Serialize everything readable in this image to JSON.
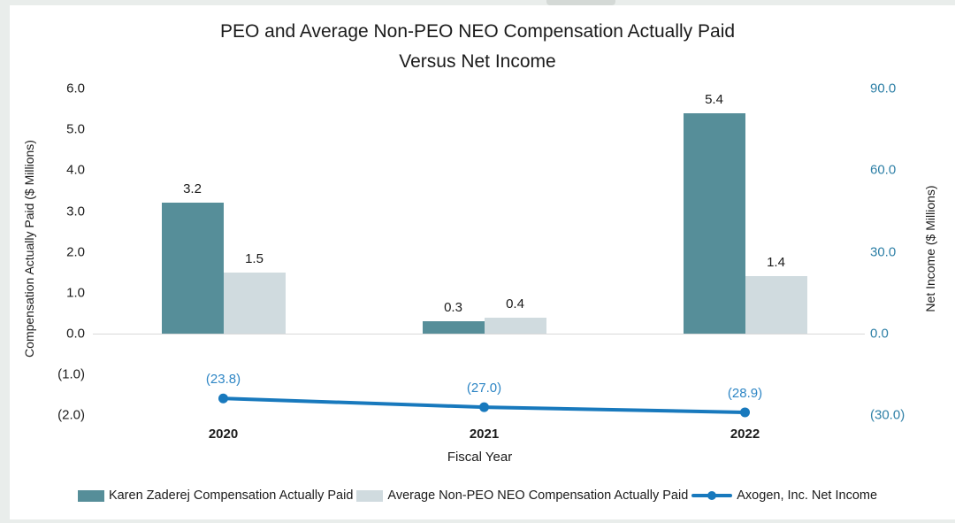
{
  "page": {
    "background_color": "#e9edeb",
    "card_color": "#ffffff",
    "tab_color": "#d4d9d6"
  },
  "chart_data": {
    "type": "bar+line combo",
    "title_line1": "PEO and Average Non-PEO NEO Compensation Actually Paid",
    "title_line2": "Versus Net Income",
    "xlabel": "Fiscal Year",
    "categories": [
      "2020",
      "2021",
      "2022"
    ],
    "left_axis": {
      "label": "Compensation Actually Paid ($ Millions)",
      "ticks": [
        "6.0",
        "5.0",
        "4.0",
        "3.0",
        "2.0",
        "1.0",
        "0.0",
        "(1.0)",
        "(2.0)"
      ],
      "range": [
        -2.0,
        6.0
      ],
      "color": "#1b1b1b"
    },
    "right_axis": {
      "label": "Net Income ($ Millions)",
      "ticks": [
        "90.0",
        "60.0",
        "30.0",
        "0.0",
        "(30.0)"
      ],
      "range": [
        -30.0,
        90.0
      ],
      "color": "#2d7fa6"
    },
    "series": [
      {
        "name": "Karen Zaderej Compensation Actually Paid",
        "type": "bar",
        "color": "#568e99",
        "values": [
          3.2,
          0.3,
          5.4
        ],
        "labels": [
          "3.2",
          "0.3",
          "5.4"
        ]
      },
      {
        "name": "Average Non-PEO NEO Compensation Actually Paid",
        "type": "bar",
        "color": "#d0dbdf",
        "values": [
          1.5,
          0.4,
          1.4
        ],
        "labels": [
          "1.5",
          "0.4",
          "1.4"
        ]
      },
      {
        "name": "Axogen, Inc. Net Income",
        "type": "line",
        "color": "#1879bd",
        "label_color": "#2e86c5",
        "values": [
          -23.8,
          -27.0,
          -28.9
        ],
        "labels": [
          "(23.8)",
          "(27.0)",
          "(28.9)"
        ]
      }
    ],
    "legend_position": "bottom",
    "grid": "zero-line only"
  }
}
